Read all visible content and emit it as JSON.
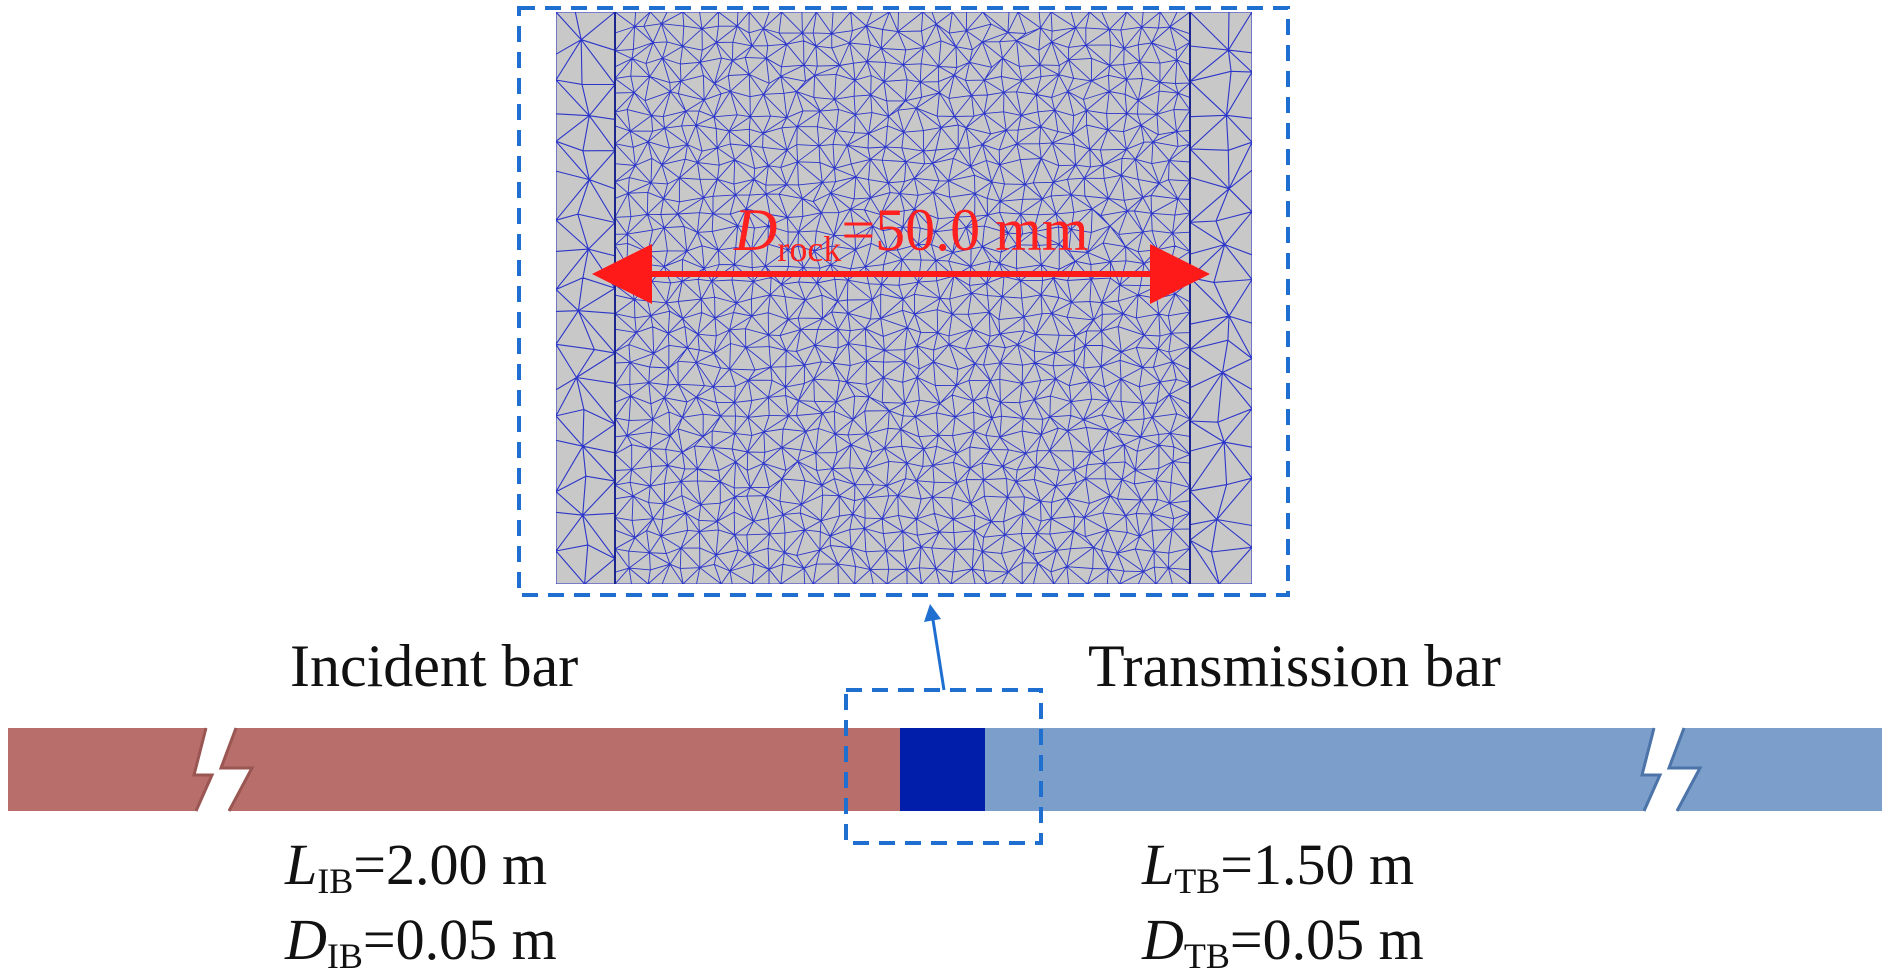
{
  "colors": {
    "incident_bar": "#b86e6a",
    "transmission_bar": "#7b9ecb",
    "specimen": "#001eaa",
    "mesh_line": "#2b35c9",
    "mesh_background": "#c8c8c8",
    "callout_box": "#1e6fd0",
    "dimension_arrow": "#ff1a1a"
  },
  "labels": {
    "incident_bar": "Incident bar",
    "transmission_bar": "Transmission bar"
  },
  "dimension": {
    "symbol": "D",
    "subscript": "rock",
    "value": "=50.0 mm"
  },
  "incident_params": {
    "length": {
      "symbol": "L",
      "subscript": "IB",
      "value": "=2.00 m"
    },
    "diameter": {
      "symbol": "D",
      "subscript": "IB",
      "value": "=0.05 m"
    }
  },
  "transmission_params": {
    "length": {
      "symbol": "L",
      "subscript": "TB",
      "value": "=1.50 m"
    },
    "diameter": {
      "symbol": "D",
      "subscript": "TB",
      "value": "=0.05 m"
    }
  },
  "icons": {
    "break_mark": "break-symbol-icon",
    "pointer": "pointer-arrow-icon"
  }
}
